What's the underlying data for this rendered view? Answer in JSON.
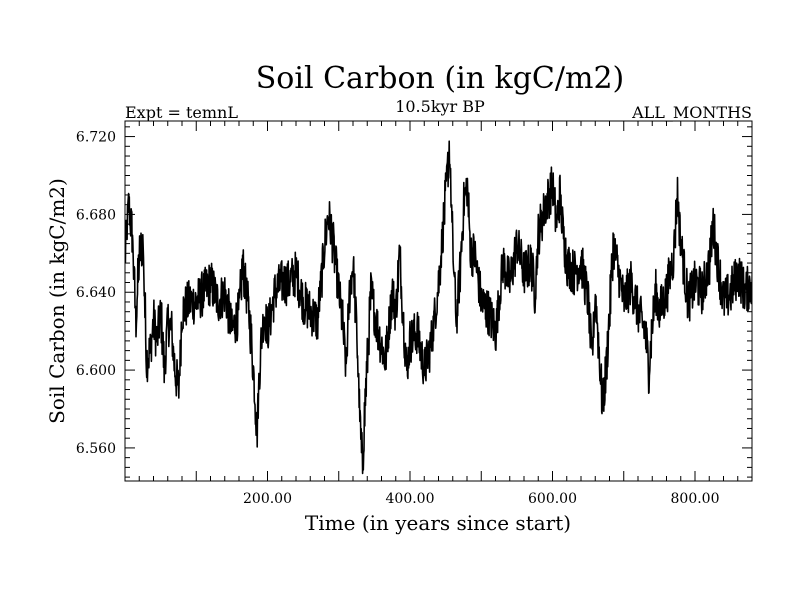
{
  "chart_data": {
    "type": "line",
    "title": "Soil Carbon (in kgC/m2)",
    "subtitle": "10.5kyr BP",
    "left_label": "Expt = temnL",
    "right_label": "ALL_MONTHS",
    "xlabel": "Time (in years since start)",
    "ylabel": "Soil Carbon (in kgC/m2)",
    "xlim": [
      0,
      880
    ],
    "ylim": [
      6.543,
      6.728
    ],
    "x_major_ticks": [
      200,
      400,
      600,
      800
    ],
    "x_tick_labels": [
      "200.00",
      "400.00",
      "600.00",
      "800.00"
    ],
    "y_major_ticks": [
      6.56,
      6.6,
      6.64,
      6.68,
      6.72
    ],
    "y_tick_labels": [
      "6.560",
      "6.600",
      "6.640",
      "6.680",
      "6.720"
    ],
    "series": [
      {
        "name": "Soil Carbon",
        "color": "#000000",
        "noise_amplitude": 0.012,
        "anchors": [
          [
            0,
            6.66
          ],
          [
            5,
            6.685
          ],
          [
            10,
            6.67
          ],
          [
            15,
            6.625
          ],
          [
            20,
            6.66
          ],
          [
            25,
            6.665
          ],
          [
            30,
            6.605
          ],
          [
            35,
            6.61
          ],
          [
            40,
            6.625
          ],
          [
            45,
            6.615
          ],
          [
            50,
            6.63
          ],
          [
            55,
            6.6
          ],
          [
            60,
            6.625
          ],
          [
            65,
            6.62
          ],
          [
            70,
            6.6
          ],
          [
            75,
            6.59
          ],
          [
            80,
            6.63
          ],
          [
            90,
            6.635
          ],
          [
            100,
            6.635
          ],
          [
            110,
            6.64
          ],
          [
            120,
            6.645
          ],
          [
            130,
            6.635
          ],
          [
            140,
            6.64
          ],
          [
            150,
            6.62
          ],
          [
            160,
            6.63
          ],
          [
            165,
            6.655
          ],
          [
            170,
            6.64
          ],
          [
            175,
            6.625
          ],
          [
            180,
            6.6
          ],
          [
            185,
            6.57
          ],
          [
            190,
            6.61
          ],
          [
            195,
            6.63
          ],
          [
            200,
            6.62
          ],
          [
            210,
            6.64
          ],
          [
            220,
            6.645
          ],
          [
            230,
            6.645
          ],
          [
            240,
            6.65
          ],
          [
            250,
            6.635
          ],
          [
            260,
            6.63
          ],
          [
            270,
            6.625
          ],
          [
            280,
            6.665
          ],
          [
            285,
            6.68
          ],
          [
            290,
            6.67
          ],
          [
            300,
            6.64
          ],
          [
            305,
            6.625
          ],
          [
            310,
            6.6
          ],
          [
            315,
            6.64
          ],
          [
            320,
            6.655
          ],
          [
            325,
            6.62
          ],
          [
            330,
            6.57
          ],
          [
            333,
            6.55
          ],
          [
            337,
            6.585
          ],
          [
            345,
            6.64
          ],
          [
            355,
            6.62
          ],
          [
            365,
            6.605
          ],
          [
            375,
            6.64
          ],
          [
            380,
            6.63
          ],
          [
            385,
            6.66
          ],
          [
            390,
            6.63
          ],
          [
            395,
            6.6
          ],
          [
            400,
            6.615
          ],
          [
            410,
            6.62
          ],
          [
            420,
            6.6
          ],
          [
            430,
            6.615
          ],
          [
            440,
            6.645
          ],
          [
            450,
            6.69
          ],
          [
            455,
            6.715
          ],
          [
            460,
            6.66
          ],
          [
            465,
            6.625
          ],
          [
            470,
            6.65
          ],
          [
            475,
            6.685
          ],
          [
            480,
            6.695
          ],
          [
            485,
            6.66
          ],
          [
            490,
            6.66
          ],
          [
            500,
            6.635
          ],
          [
            510,
            6.63
          ],
          [
            520,
            6.62
          ],
          [
            530,
            6.655
          ],
          [
            540,
            6.645
          ],
          [
            550,
            6.665
          ],
          [
            560,
            6.65
          ],
          [
            570,
            6.655
          ],
          [
            575,
            6.64
          ],
          [
            580,
            6.67
          ],
          [
            590,
            6.685
          ],
          [
            600,
            6.695
          ],
          [
            605,
            6.675
          ],
          [
            610,
            6.69
          ],
          [
            615,
            6.67
          ],
          [
            620,
            6.655
          ],
          [
            630,
            6.65
          ],
          [
            640,
            6.655
          ],
          [
            650,
            6.635
          ],
          [
            655,
            6.605
          ],
          [
            660,
            6.64
          ],
          [
            670,
            6.58
          ],
          [
            675,
            6.6
          ],
          [
            680,
            6.63
          ],
          [
            685,
            6.665
          ],
          [
            690,
            6.655
          ],
          [
            700,
            6.635
          ],
          [
            710,
            6.645
          ],
          [
            720,
            6.63
          ],
          [
            730,
            6.62
          ],
          [
            735,
            6.6
          ],
          [
            740,
            6.625
          ],
          [
            745,
            6.64
          ],
          [
            750,
            6.63
          ],
          [
            760,
            6.64
          ],
          [
            770,
            6.66
          ],
          [
            775,
            6.69
          ],
          [
            780,
            6.665
          ],
          [
            790,
            6.635
          ],
          [
            800,
            6.645
          ],
          [
            810,
            6.64
          ],
          [
            820,
            6.655
          ],
          [
            825,
            6.675
          ],
          [
            830,
            6.66
          ],
          [
            840,
            6.635
          ],
          [
            850,
            6.64
          ],
          [
            860,
            6.65
          ],
          [
            870,
            6.64
          ],
          [
            880,
            6.645
          ]
        ]
      }
    ]
  }
}
